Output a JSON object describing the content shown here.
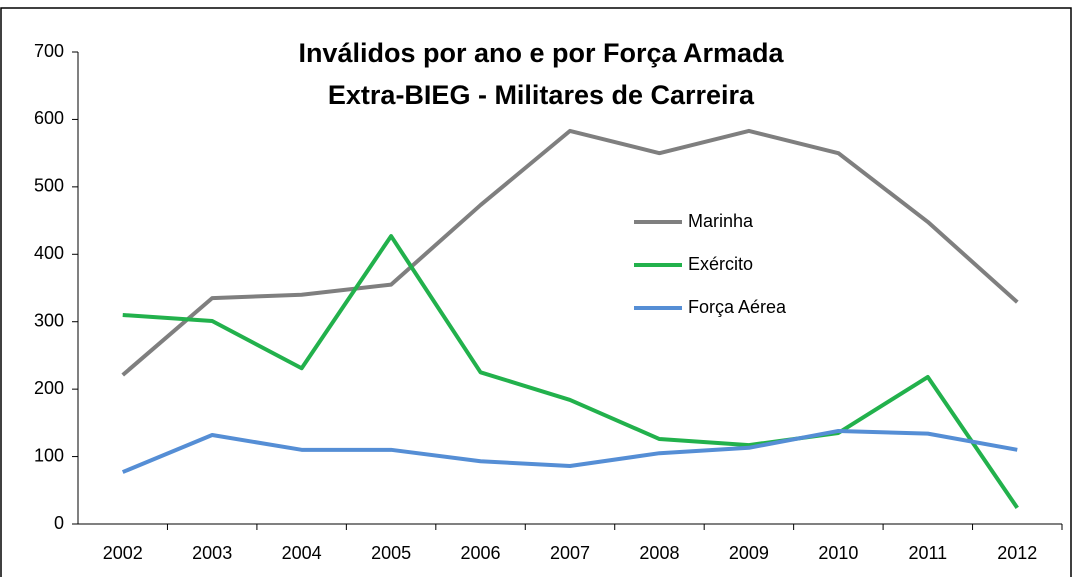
{
  "chart_data": {
    "type": "line",
    "title": "Inválidos por ano e por Força Armada",
    "subtitle": "Extra-BIEG - Militares de Carreira",
    "categories": [
      "2002",
      "2003",
      "2004",
      "2005",
      "2006",
      "2007",
      "2008",
      "2009",
      "2010",
      "2011",
      "2012"
    ],
    "series": [
      {
        "name": "Marinha",
        "color": "#7f7f7f",
        "values": [
          221,
          335,
          340,
          355,
          473,
          583,
          550,
          583,
          550,
          448,
          329
        ]
      },
      {
        "name": "Exército",
        "color": "#22b14c",
        "values": [
          310,
          301,
          231,
          427,
          225,
          184,
          126,
          117,
          135,
          218,
          24
        ]
      },
      {
        "name": "Força Aérea",
        "color": "#558ed5",
        "values": [
          77,
          132,
          110,
          110,
          93,
          86,
          105,
          113,
          138,
          134,
          110
        ]
      }
    ],
    "ylim": [
      0,
      700
    ],
    "yticks": [
      0,
      100,
      200,
      300,
      400,
      500,
      600,
      700
    ],
    "grid": false,
    "legend": "inside"
  }
}
